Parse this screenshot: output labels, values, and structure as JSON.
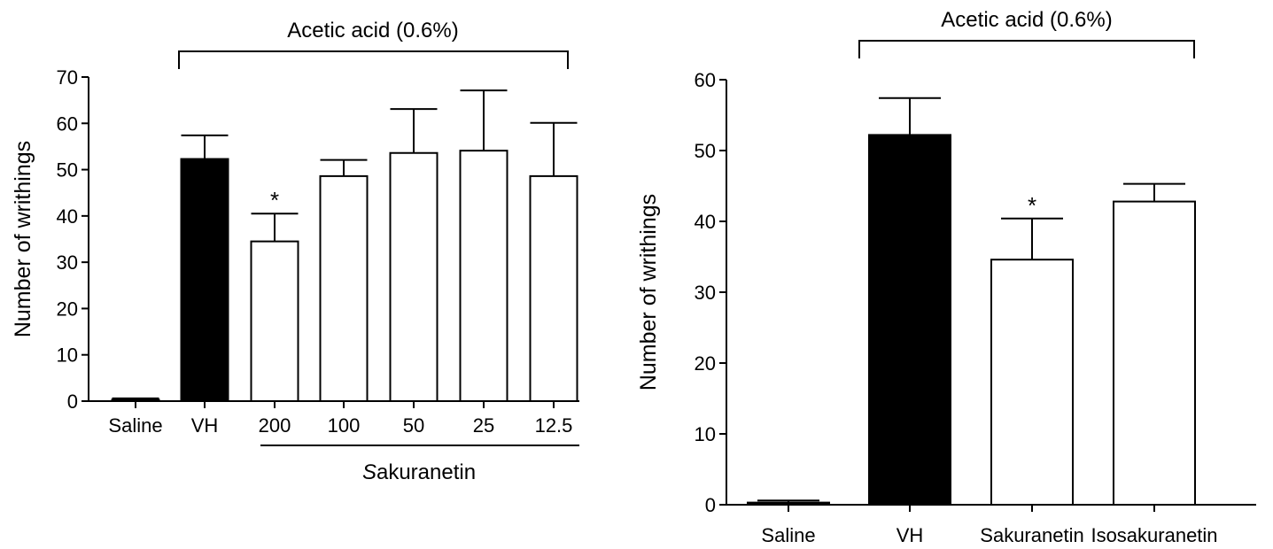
{
  "chart_data": [
    {
      "type": "bar",
      "ylabel": "Number of writhings",
      "ylim": [
        0,
        70
      ],
      "yticks": [
        0,
        10,
        20,
        30,
        40,
        50,
        60,
        70
      ],
      "categories": [
        "Saline",
        "VH",
        "200",
        "100",
        "50",
        "25",
        "12.5"
      ],
      "values": [
        0.3,
        52.3,
        34.5,
        48.6,
        53.6,
        54.1,
        48.6
      ],
      "errors": [
        0.3,
        5.1,
        6.0,
        3.5,
        9.5,
        13.0,
        11.5
      ],
      "fills": [
        "#000000",
        "#000000",
        "#ffffff",
        "#ffffff",
        "#ffffff",
        "#ffffff",
        "#ffffff"
      ],
      "significance": [
        "",
        "",
        "*",
        "",
        "",
        "",
        ""
      ],
      "bracket_label": "Acetic acid (0.6%)",
      "group_label_prefix": "S",
      "group_label_rest": "akuranetin",
      "grid": false
    },
    {
      "type": "bar",
      "ylabel": "Number of writhings",
      "ylim": [
        0,
        60
      ],
      "yticks": [
        0,
        10,
        20,
        30,
        40,
        50,
        60
      ],
      "categories": [
        "Saline",
        "VH",
        "Sakuranetin",
        "Isosakuranetin"
      ],
      "values": [
        0.3,
        52.2,
        34.6,
        42.8
      ],
      "errors": [
        0.3,
        5.2,
        5.8,
        2.5
      ],
      "fills": [
        "#000000",
        "#000000",
        "#ffffff",
        "#ffffff"
      ],
      "significance": [
        "",
        "",
        "*",
        ""
      ],
      "bracket_label": "Acetic acid (0.6%)",
      "grid": false
    }
  ]
}
